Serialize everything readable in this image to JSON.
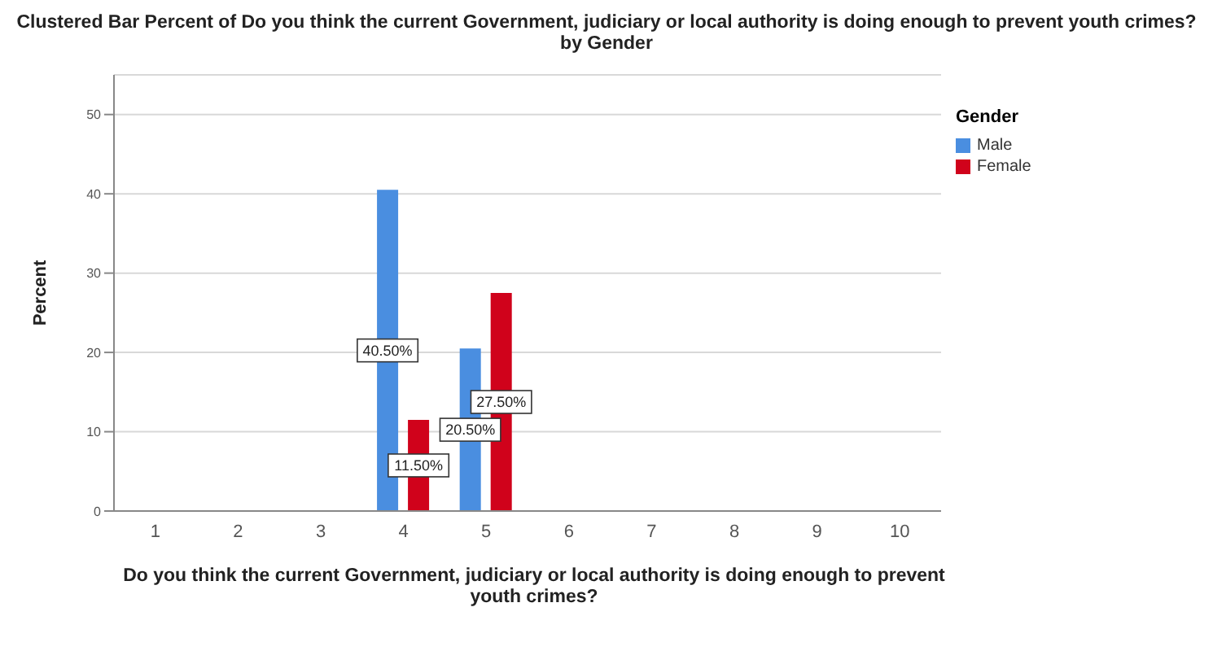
{
  "chart_data": {
    "type": "bar",
    "title": "Clustered Bar Percent of Do you think the current Government, judiciary or local authority is doing enough to prevent youth crimes? by Gender",
    "xlabel": "Do you think the current Government, judiciary or local authority is doing enough to prevent youth crimes?",
    "ylabel": "Percent",
    "legend_title": "Gender",
    "categories": [
      "1",
      "2",
      "3",
      "4",
      "5",
      "6",
      "7",
      "8",
      "9",
      "10"
    ],
    "series": [
      {
        "name": "Male",
        "color": "#4a8ee0",
        "values": [
          null,
          null,
          null,
          40.5,
          20.5,
          null,
          null,
          null,
          null,
          null
        ],
        "value_labels": [
          null,
          null,
          null,
          "40.50%",
          "20.50%",
          null,
          null,
          null,
          null,
          null
        ]
      },
      {
        "name": "Female",
        "color": "#d0021b",
        "values": [
          null,
          null,
          null,
          11.5,
          27.5,
          null,
          null,
          null,
          null,
          null
        ],
        "value_labels": [
          null,
          null,
          null,
          "11.50%",
          "27.50%",
          null,
          null,
          null,
          null,
          null
        ]
      }
    ],
    "ylim": [
      0,
      55
    ],
    "yticks": [
      0,
      10,
      20,
      30,
      40,
      50
    ],
    "grid": "y",
    "legend": "top right"
  }
}
